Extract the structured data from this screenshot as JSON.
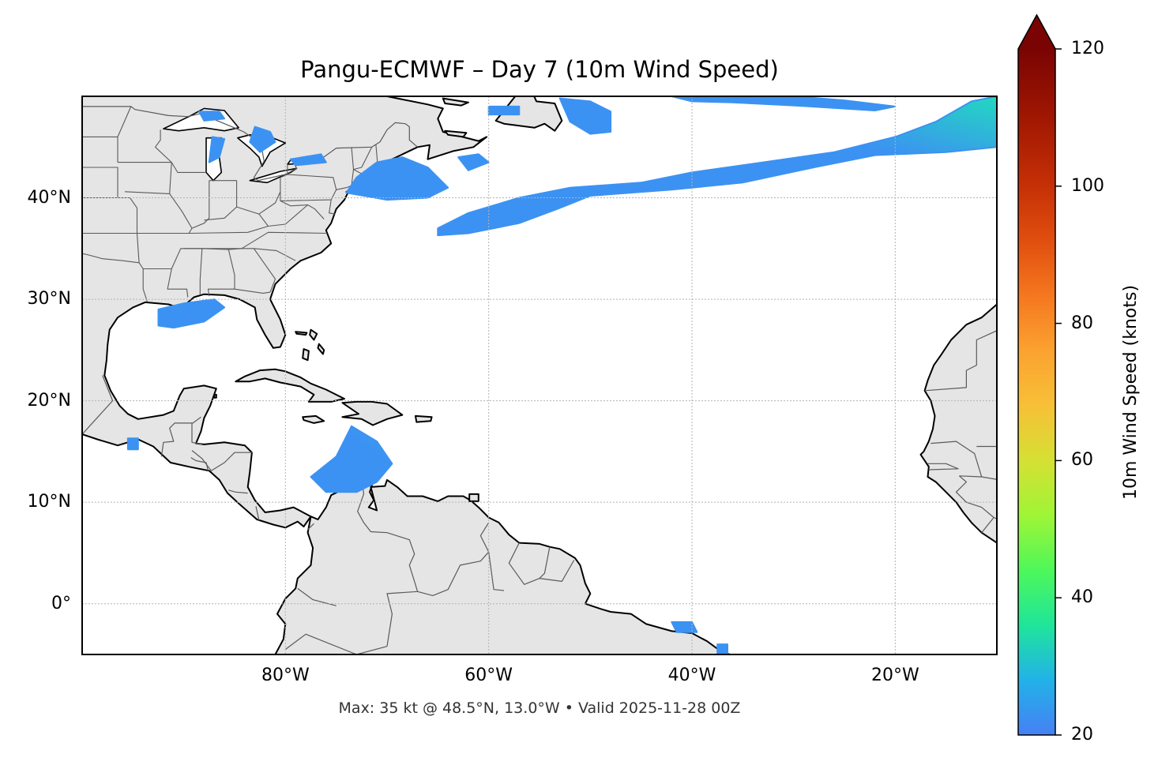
{
  "title": "Pangu-ECMWF – Day 7 (10m Wind Speed)",
  "footer": "Max: 35 kt @ 48.5°N, 13.0°W • Valid 2025-11-28 00Z",
  "map": {
    "projection": "PlateCarree",
    "lon_range": [
      -100,
      -10
    ],
    "lat_range": [
      -5,
      50
    ],
    "gridlines": true,
    "land_color": "#e5e5e5",
    "ocean_color": "#ffffff",
    "coastline_color": "#000000",
    "border_color": "#5a5a5a",
    "x_ticks": [
      {
        "lon": -80,
        "label": "80°W"
      },
      {
        "lon": -60,
        "label": "60°W"
      },
      {
        "lon": -40,
        "label": "40°W"
      },
      {
        "lon": -20,
        "label": "20°W"
      }
    ],
    "y_ticks": [
      {
        "lat": 40,
        "label": "40°N"
      },
      {
        "lat": 30,
        "label": "30°N"
      },
      {
        "lat": 20,
        "label": "20°N"
      },
      {
        "lat": 10,
        "label": "10°N"
      },
      {
        "lat": 0,
        "label": "0°"
      }
    ]
  },
  "colorbar": {
    "label": "10m Wind Speed (knots)",
    "range": [
      20,
      120
    ],
    "extend": "max",
    "extend_color": "#7a0403",
    "ticks": [
      {
        "value": 20,
        "label": "20"
      },
      {
        "value": 40,
        "label": "40"
      },
      {
        "value": 60,
        "label": "60"
      },
      {
        "value": 80,
        "label": "80"
      },
      {
        "value": 100,
        "label": "100"
      },
      {
        "value": 120,
        "label": "120"
      }
    ],
    "colormap_stops": [
      {
        "value": 20,
        "color": "#4680f5"
      },
      {
        "value": 28,
        "color": "#22b2e8"
      },
      {
        "value": 36,
        "color": "#1fe59a"
      },
      {
        "value": 44,
        "color": "#4ef75a"
      },
      {
        "value": 52,
        "color": "#9ff536"
      },
      {
        "value": 60,
        "color": "#d5e034"
      },
      {
        "value": 68,
        "color": "#f7c037"
      },
      {
        "value": 76,
        "color": "#fba230"
      },
      {
        "value": 84,
        "color": "#f5771f"
      },
      {
        "value": 92,
        "color": "#e04f0f"
      },
      {
        "value": 100,
        "color": "#c63006"
      },
      {
        "value": 110,
        "color": "#a01702"
      },
      {
        "value": 120,
        "color": "#7a0403"
      }
    ]
  },
  "wind_patches": [
    {
      "name": "north-atlantic-jet",
      "color": "#3c92f2",
      "peak_color": "#22d8c0",
      "polygon": [
        [
          -65,
          37
        ],
        [
          -62,
          38.5
        ],
        [
          -57,
          40
        ],
        [
          -52,
          41
        ],
        [
          -45,
          41.5
        ],
        [
          -40,
          42.5
        ],
        [
          -33,
          43.5
        ],
        [
          -26,
          44.5
        ],
        [
          -20,
          46
        ],
        [
          -16,
          47.5
        ],
        [
          -12.5,
          49.5
        ],
        [
          -10,
          50
        ],
        [
          -10,
          45
        ],
        [
          -15,
          44.5
        ],
        [
          -22,
          44.2
        ],
        [
          -28,
          43
        ],
        [
          -35,
          41.5
        ],
        [
          -42,
          40.8
        ],
        [
          -50,
          40.2
        ],
        [
          -53,
          39
        ],
        [
          -57,
          37.5
        ],
        [
          -62,
          36.5
        ],
        [
          -65,
          36.3
        ]
      ]
    },
    {
      "name": "north-atlantic-upper-band",
      "color": "#3c92f2",
      "polygon": [
        [
          -42,
          50
        ],
        [
          -30,
          50
        ],
        [
          -25,
          49.6
        ],
        [
          -20,
          49
        ],
        [
          -22,
          48.6
        ],
        [
          -30,
          49.1
        ],
        [
          -36,
          49.4
        ],
        [
          -40,
          49.5
        ]
      ]
    },
    {
      "name": "newfoundland-patch",
      "color": "#3c92f2",
      "polygon": [
        [
          -53,
          49.8
        ],
        [
          -50,
          49.5
        ],
        [
          -48,
          48.5
        ],
        [
          -48,
          46.5
        ],
        [
          -50,
          46.3
        ],
        [
          -52,
          47.5
        ]
      ]
    },
    {
      "name": "new-england-offshore",
      "color": "#3c92f2",
      "polygon": [
        [
          -71,
          43.5
        ],
        [
          -68.5,
          44
        ],
        [
          -66,
          43
        ],
        [
          -64,
          41
        ],
        [
          -66,
          40
        ],
        [
          -70,
          39.8
        ],
        [
          -74,
          40.5
        ],
        [
          -73,
          42
        ]
      ]
    },
    {
      "name": "nova-scotia-patch",
      "color": "#3c92f2",
      "polygon": [
        [
          -63,
          44
        ],
        [
          -61,
          44.3
        ],
        [
          -60,
          43.5
        ],
        [
          -62,
          42.7
        ]
      ]
    },
    {
      "name": "cabot-strait-patch",
      "color": "#3c92f2",
      "polygon": [
        [
          -60,
          49
        ],
        [
          -57,
          49
        ],
        [
          -57,
          48.2
        ],
        [
          -60,
          48.2
        ]
      ]
    },
    {
      "name": "great-lakes-superior",
      "color": "#3c92f2",
      "polygon": [
        [
          -88.5,
          48.5
        ],
        [
          -86.5,
          48.5
        ],
        [
          -86,
          47.8
        ],
        [
          -88,
          47.6
        ]
      ]
    },
    {
      "name": "great-lakes-huron",
      "color": "#3c92f2",
      "polygon": [
        [
          -83,
          47
        ],
        [
          -81.5,
          46.5
        ],
        [
          -81,
          45.5
        ],
        [
          -82.5,
          44.5
        ],
        [
          -83.5,
          45.5
        ]
      ]
    },
    {
      "name": "great-lakes-michigan",
      "color": "#3c92f2",
      "polygon": [
        [
          -87.2,
          46
        ],
        [
          -86,
          45.8
        ],
        [
          -86.5,
          44
        ],
        [
          -87.5,
          43.5
        ]
      ]
    },
    {
      "name": "lake-erie-ontario",
      "color": "#3c92f2",
      "polygon": [
        [
          -79.5,
          43.8
        ],
        [
          -76.5,
          44.3
        ],
        [
          -76,
          43.5
        ],
        [
          -79,
          43.2
        ]
      ]
    },
    {
      "name": "gulf-of-mexico-patch",
      "color": "#3c92f2",
      "polygon": [
        [
          -92.5,
          29
        ],
        [
          -90,
          29.6
        ],
        [
          -87,
          30
        ],
        [
          -86,
          29.2
        ],
        [
          -88,
          27.8
        ],
        [
          -91,
          27.2
        ],
        [
          -92.5,
          27.4
        ]
      ]
    },
    {
      "name": "caribbean-low-level-jet",
      "color": "#3c92f2",
      "peak_color": "#2ea8ec",
      "polygon": [
        [
          -73.5,
          17.5
        ],
        [
          -71,
          16
        ],
        [
          -69.5,
          13.8
        ],
        [
          -71,
          12
        ],
        [
          -73,
          11
        ],
        [
          -76,
          11
        ],
        [
          -77.5,
          12.5
        ],
        [
          -75,
          14.5
        ]
      ]
    },
    {
      "name": "amazon-delta-patch",
      "color": "#3c92f2",
      "polygon": [
        [
          -42,
          -1.8
        ],
        [
          -40,
          -1.8
        ],
        [
          -39.5,
          -2.8
        ],
        [
          -41.5,
          -2.8
        ]
      ]
    },
    {
      "name": "ne-brazil-patch",
      "color": "#3c92f2",
      "polygon": [
        [
          -37.5,
          -4
        ],
        [
          -36.5,
          -4
        ],
        [
          -36.5,
          -5
        ],
        [
          -37.5,
          -5
        ]
      ]
    },
    {
      "name": "pacific-mexico-patch",
      "color": "#3c92f2",
      "polygon": [
        [
          -95.5,
          16.3
        ],
        [
          -94.5,
          16.3
        ],
        [
          -94.5,
          15.2
        ],
        [
          -95.5,
          15.2
        ]
      ]
    }
  ]
}
